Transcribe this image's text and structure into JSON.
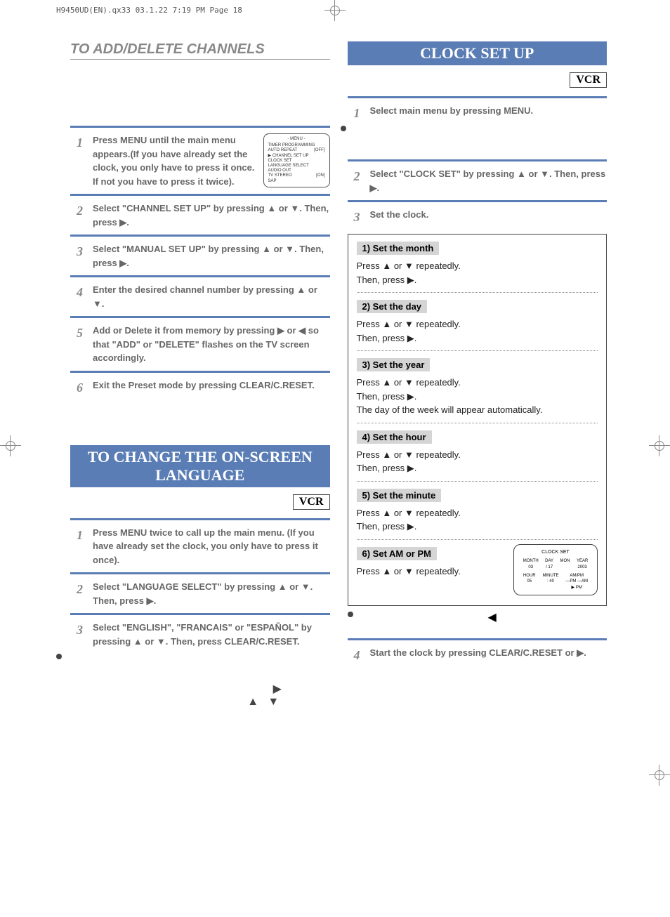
{
  "header_line": "H9450UD(EN).qx33  03.1.22 7:19 PM  Page 18",
  "colors": {
    "blue_bar": "#5a7db5",
    "gray_text": "#888888",
    "dark_text": "#666666",
    "substep_bg": "#d5d5d5",
    "black": "#222222"
  },
  "left": {
    "title_add_delete": "TO ADD/DELETE CHANNELS",
    "steps_ad": [
      {
        "n": "1",
        "t": "Press MENU until the main menu appears.(If you have already set the clock, you only have to press it once.  If not you have to press it twice)."
      },
      {
        "n": "2",
        "t": "Select \"CHANNEL SET UP\" by pressing ▲ or ▼. Then, press ▶."
      },
      {
        "n": "3",
        "t": "Select \"MANUAL SET UP\" by pressing ▲ or ▼. Then, press ▶."
      },
      {
        "n": "4",
        "t": "Enter the desired channel number by pressing ▲ or ▼."
      },
      {
        "n": "5",
        "t": "Add or Delete it from memory by pressing ▶ or ◀ so that \"ADD\" or \"DELETE\" flashes on the TV screen accordingly."
      },
      {
        "n": "6",
        "t": "Exit the Preset mode by pressing CLEAR/C.RESET."
      }
    ],
    "osd_menu": {
      "title": "- MENU -",
      "rows": [
        {
          "l": "TIMER PROGRAMMING",
          "r": ""
        },
        {
          "l": "AUTO REPEAT",
          "r": "[OFF]"
        },
        {
          "l": "▶ CHANNEL SET UP",
          "r": ""
        },
        {
          "l": "CLOCK SET",
          "r": ""
        },
        {
          "l": "LANGUAGE SELECT",
          "r": ""
        },
        {
          "l": "AUDIO OUT",
          "r": ""
        },
        {
          "l": "TV STEREO",
          "r": "[ON]"
        },
        {
          "l": "SAP",
          "r": ""
        }
      ]
    },
    "title_lang": "TO CHANGE THE ON-SCREEN LANGUAGE",
    "vcr": "VCR",
    "steps_lang": [
      {
        "n": "1",
        "t": "Press MENU twice to call up the main menu. (If you have already set the clock, you only have to press it once)."
      },
      {
        "n": "2",
        "t": "Select \"LANGUAGE SELECT\" by pressing ▲ or ▼. Then, press ▶."
      },
      {
        "n": "3",
        "t": "Select \"ENGLISH\", \"FRANCAIS\" or \"ESPAÑOL\" by pressing ▲ or ▼. Then, press CLEAR/C.RESET."
      }
    ]
  },
  "right": {
    "title_clock": "CLOCK SET UP",
    "vcr": "VCR",
    "steps_top": [
      {
        "n": "1",
        "t": "Select main menu by pressing MENU."
      },
      {
        "n": "2",
        "t": "Select \"CLOCK SET\" by pressing ▲ or ▼. Then, press ▶."
      },
      {
        "n": "3",
        "t": "Set the clock."
      }
    ],
    "substeps": [
      {
        "h": "1) Set the month",
        "t": "Press ▲ or ▼ repeatedly.\nThen, press ▶."
      },
      {
        "h": "2) Set the day",
        "t": "Press ▲ or ▼ repeatedly.\nThen, press ▶."
      },
      {
        "h": "3) Set the year",
        "t": "Press ▲ or ▼ repeatedly.\nThen, press ▶.\nThe day of the week will appear automatically."
      },
      {
        "h": "4) Set the hour",
        "t": "Press ▲ or ▼ repeatedly.\nThen, press ▶."
      },
      {
        "h": "5) Set the minute",
        "t": "Press ▲ or ▼ repeatedly.\nThen, press ▶."
      },
      {
        "h": "6) Set AM or PM",
        "t": "Press  ▲ or ▼ repeatedly."
      }
    ],
    "clockset_osd": {
      "title": "CLOCK SET",
      "row1_labels": [
        "MONTH",
        "DAY",
        "",
        "YEAR"
      ],
      "row1_vals": [
        "03",
        "/  17",
        "MON",
        "2003"
      ],
      "row2_labels": [
        "HOUR",
        "MINUTE",
        "AM/PM"
      ],
      "row2_vals": [
        "05",
        ":   40",
        "—PM —AM\n▶ PM"
      ]
    },
    "step4": {
      "n": "4",
      "t": "Start the clock by pressing CLEAR/C.RESET or ▶."
    }
  }
}
